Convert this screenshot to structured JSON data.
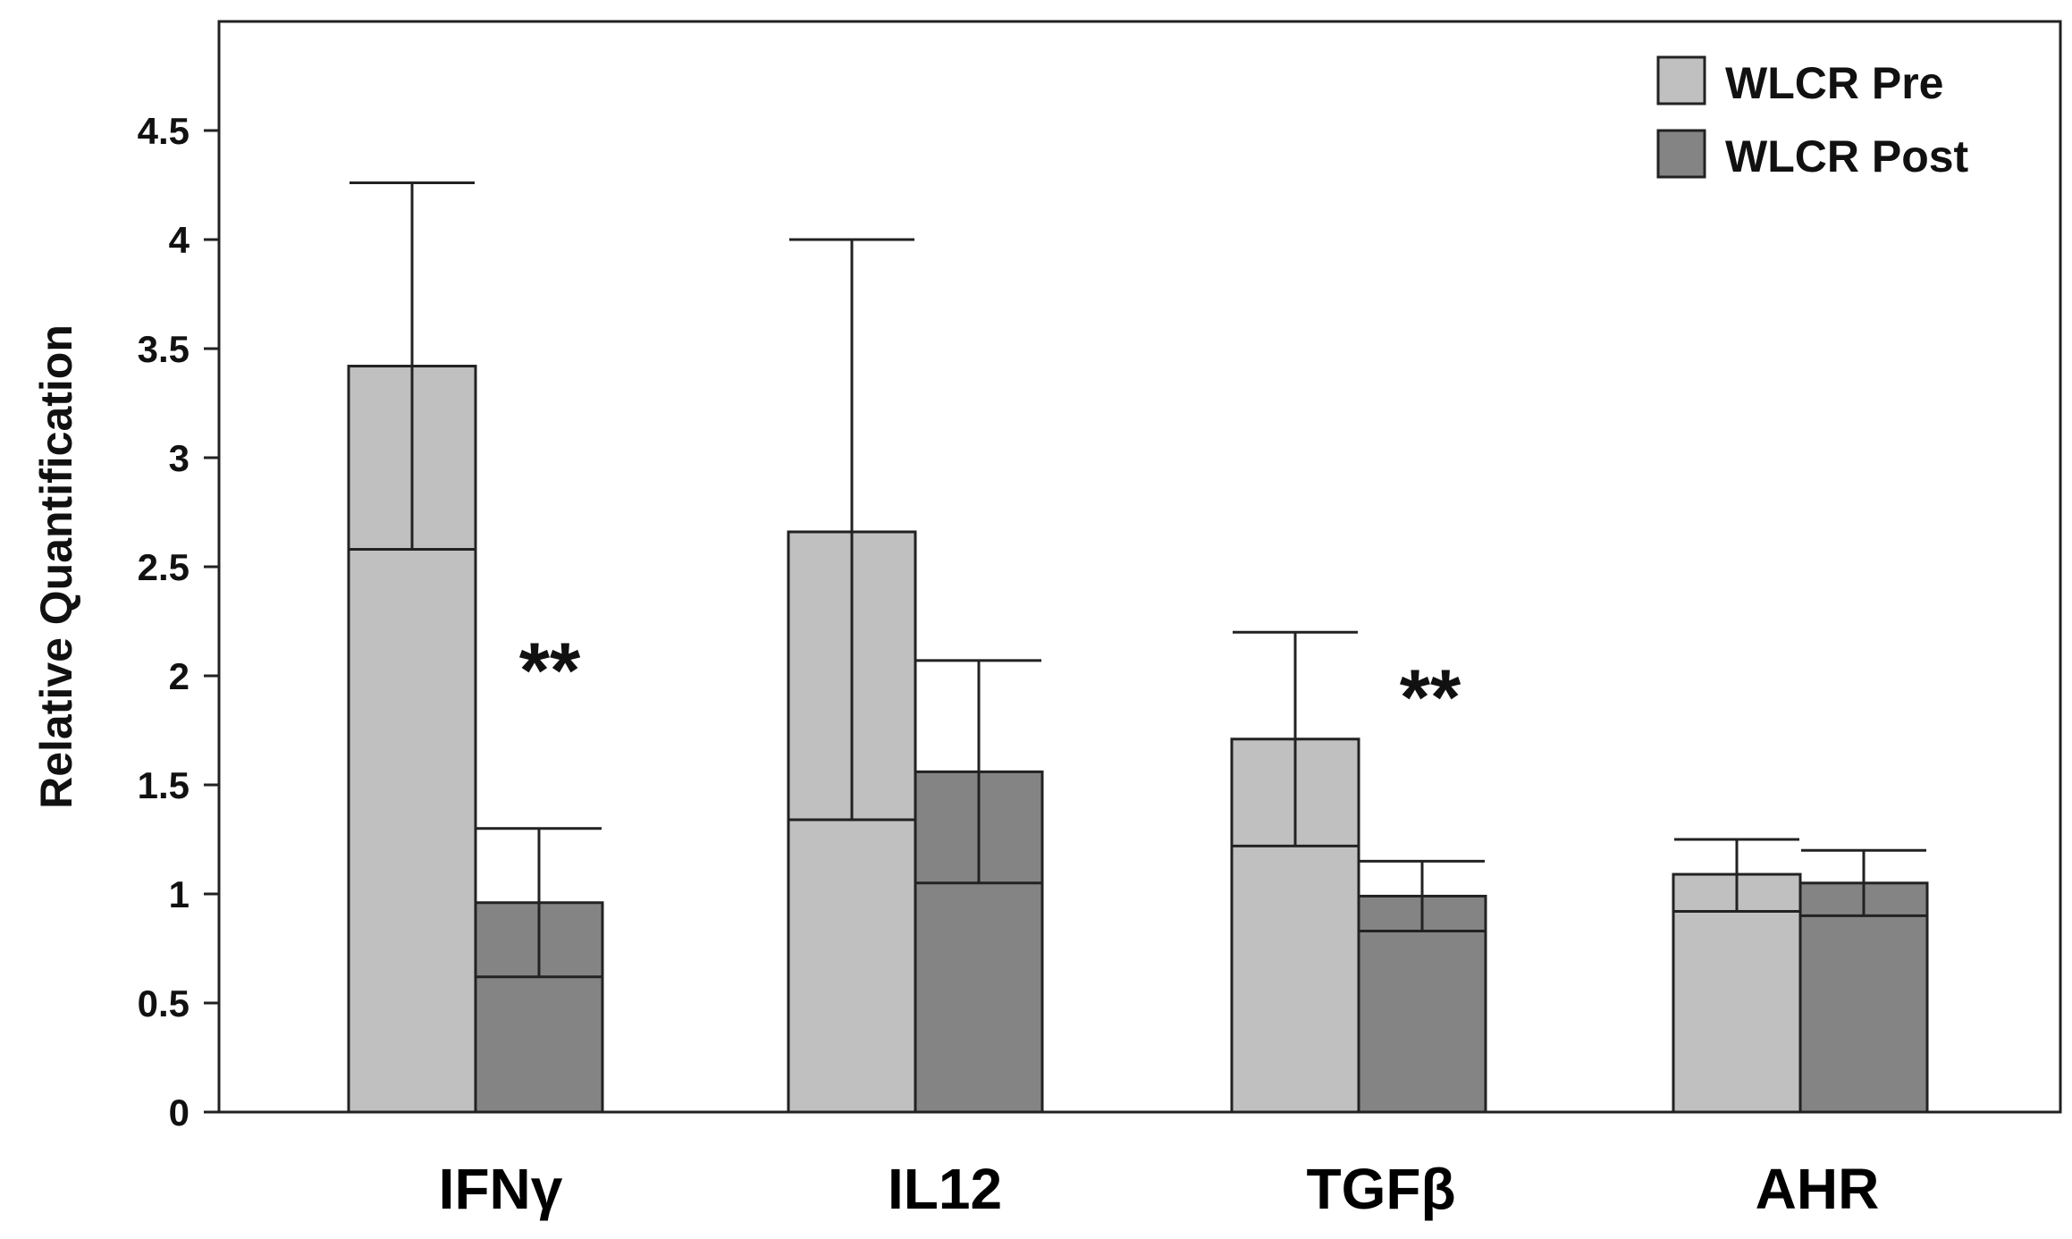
{
  "chart_data": {
    "type": "bar",
    "title": "",
    "xlabel": "",
    "ylabel": "Relative Quantification",
    "ylim": [
      0,
      4.8
    ],
    "yticks": [
      "0",
      "0.5",
      "1",
      "1.5",
      "2",
      "2.5",
      "3",
      "3.5",
      "4",
      "4.5"
    ],
    "grid": false,
    "legend_position": "top-right",
    "categories": [
      "IFNγ",
      "IL12",
      "TGFβ",
      "AHR"
    ],
    "series": [
      {
        "name": "WLCR Pre",
        "color": "#c0c0c0",
        "values": [
          3.42,
          2.66,
          1.71,
          1.09
        ],
        "error_upper": [
          4.26,
          4.0,
          2.2,
          1.25
        ],
        "error_lower": [
          2.58,
          1.34,
          1.22,
          0.92
        ]
      },
      {
        "name": "WLCR Post",
        "color": "#848484",
        "values": [
          0.96,
          1.56,
          0.99,
          1.05
        ],
        "error_upper": [
          1.3,
          2.07,
          1.15,
          1.2
        ],
        "error_lower": [
          0.62,
          1.05,
          0.83,
          0.9
        ]
      }
    ],
    "annotations": [
      {
        "category": "IFNγ",
        "text": "**"
      },
      {
        "category": "TGFβ",
        "text": "**"
      }
    ]
  }
}
